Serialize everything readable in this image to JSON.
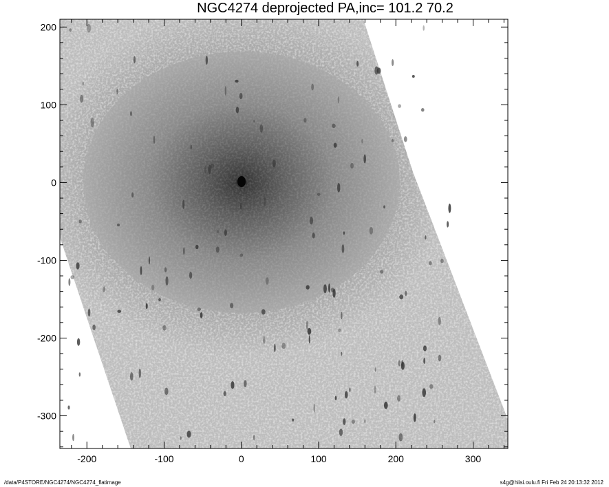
{
  "chart_data": {
    "type": "image",
    "title": "NGC4274 deprojected  PA,inc= 101.2  70.2",
    "xlim": [
      -235,
      345
    ],
    "ylim": [
      -342,
      210
    ],
    "xticks": [
      -200,
      -100,
      0,
      100,
      200,
      300
    ],
    "yticks": [
      -300,
      -200,
      -100,
      0,
      100,
      200
    ],
    "minor_tick_step": 20,
    "colormap": "grayscale-inverted",
    "galaxy_center": [
      0,
      0
    ],
    "grid": false
  },
  "footer": {
    "path": "/data/P4STORE/NGC4274/NGC4274_flatimage",
    "stamp": "s4g@hiisi.oulu.fi  Fri Feb 24 20:13:32 2012"
  }
}
